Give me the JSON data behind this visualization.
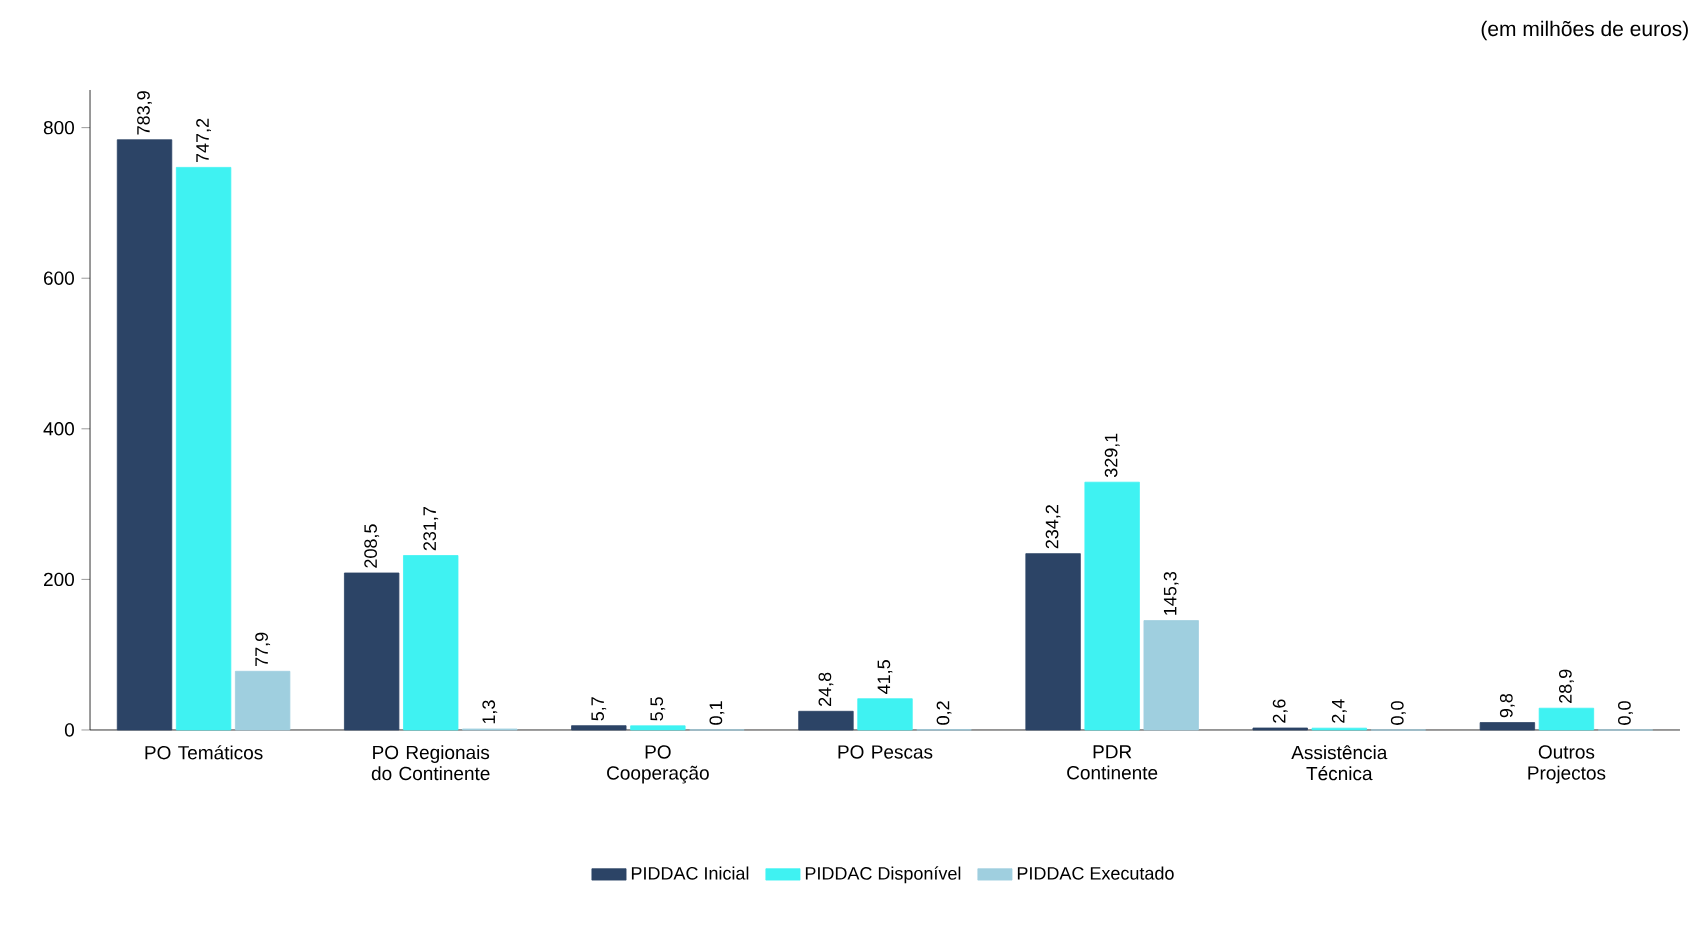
{
  "chart_data": {
    "type": "bar",
    "categories": [
      "PO Temáticos",
      "PO Regionais do Continente",
      "PO Cooperação",
      "PO Pescas",
      "PDR Continente",
      "Assistência Técnica",
      "Outros Projectos"
    ],
    "series": [
      {
        "name": "PIDDAC Inicial",
        "color": "#2c4466",
        "values": [
          783.9,
          208.5,
          5.7,
          24.8,
          234.2,
          2.6,
          9.8
        ],
        "value_labels": [
          "783,9",
          "208,5",
          "5,7",
          "24,8",
          "234,2",
          "2,6",
          "9,8"
        ]
      },
      {
        "name": "PIDDAC Disponível",
        "color": "#3ff2f2",
        "values": [
          747.2,
          231.7,
          5.5,
          41.5,
          329.1,
          2.4,
          28.9
        ],
        "value_labels": [
          "747,2",
          "231,7",
          "5,5",
          "41,5",
          "329,1",
          "2,4",
          "28,9"
        ]
      },
      {
        "name": "PIDDAC Executado",
        "color": "#9fcfdf",
        "values": [
          77.9,
          1.3,
          0.1,
          0.2,
          145.3,
          0.0,
          0.0
        ],
        "value_labels": [
          "77,9",
          "1,3",
          "0,1",
          "0,2",
          "145,3",
          "0,0",
          "0,0"
        ]
      }
    ],
    "ylim": [
      0,
      850
    ],
    "yticks": [
      0,
      200,
      400,
      600,
      800
    ],
    "legend": "bottom",
    "annotations": [
      "(em milhões de euros)"
    ]
  }
}
